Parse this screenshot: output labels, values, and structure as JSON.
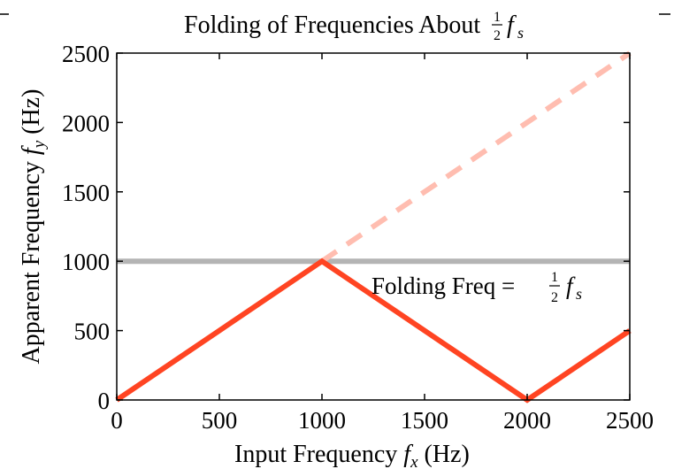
{
  "chart_data": {
    "type": "line",
    "title": {
      "prefix": "Folding of Frequencies About ",
      "frac_num": "1",
      "frac_den": "2",
      "var": "f",
      "sub": "s"
    },
    "xlabel": {
      "prefix": "Input Frequency ",
      "var": "f",
      "sub": "x",
      "suffix": " (Hz)"
    },
    "ylabel": {
      "prefix": "Apparent Frequency ",
      "var": "f",
      "sub": "y",
      "suffix": " (Hz)"
    },
    "xlim": [
      0,
      2500
    ],
    "ylim": [
      0,
      2500
    ],
    "xticks": [
      0,
      500,
      1000,
      1500,
      2000,
      2500
    ],
    "yticks": [
      0,
      500,
      1000,
      1500,
      2000,
      2500
    ],
    "grid": false,
    "series": [
      {
        "style": "solid",
        "color": "#ff4422",
        "x": [
          0,
          1000,
          2000,
          2500
        ],
        "y": [
          0,
          1000,
          0,
          500
        ]
      },
      {
        "style": "dashed",
        "color": "#ffbdb0",
        "x": [
          1000,
          2500
        ],
        "y": [
          1000,
          2500
        ]
      },
      {
        "style": "solid",
        "color": "#b4b4b4",
        "x": [
          0,
          2500
        ],
        "y": [
          1000,
          1000
        ]
      }
    ],
    "annotation": {
      "prefix": "Folding Freq = ",
      "frac_num": "1",
      "frac_den": "2",
      "var": "f",
      "sub": "s",
      "x": 1300,
      "y": 850
    }
  }
}
